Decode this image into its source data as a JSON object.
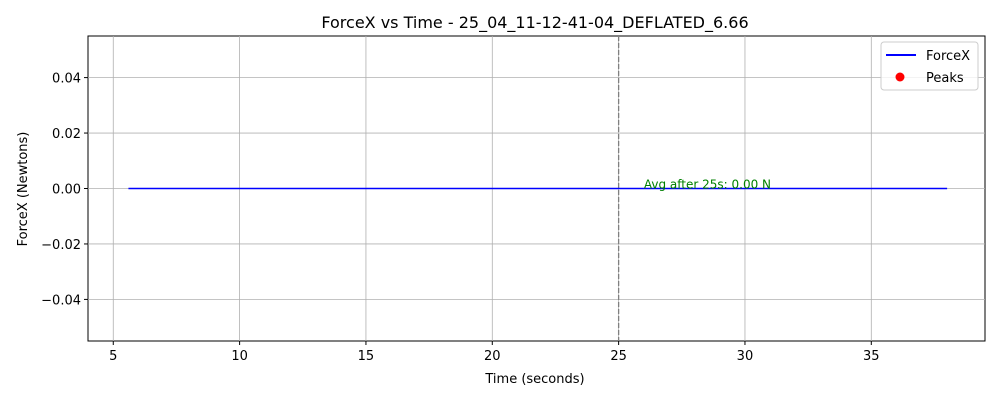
{
  "chart_data": {
    "type": "line",
    "title": "ForceX vs Time - 25_04_11-12-41-04_DEFLATED_6.66",
    "xlabel": "Time (seconds)",
    "ylabel": "ForceX (Newtons)",
    "xlim": [
      4.0,
      39.5
    ],
    "ylim": [
      -0.055,
      0.055
    ],
    "x_ticks": [
      5,
      10,
      15,
      20,
      25,
      30,
      35
    ],
    "y_ticks": [
      -0.04,
      -0.02,
      0.0,
      0.02,
      0.04
    ],
    "y_tick_labels": [
      "−0.04",
      "−0.02",
      "0.00",
      "0.02",
      "0.04"
    ],
    "grid": true,
    "legend_position": "top-right",
    "series": [
      {
        "name": "ForceX",
        "kind": "line",
        "color": "#0000ff",
        "x": [
          5.6,
          38.0
        ],
        "y": [
          0.0,
          0.0
        ]
      },
      {
        "name": "Peaks",
        "kind": "scatter",
        "color": "#ff0000",
        "x": [],
        "y": []
      }
    ],
    "vline": {
      "x": 25,
      "color": "#808080",
      "style": "dashed"
    },
    "annotations": [
      {
        "text": "Avg after 25s: 0.00 N",
        "x": 26.0,
        "y": 0.0,
        "color": "#008000"
      }
    ]
  }
}
